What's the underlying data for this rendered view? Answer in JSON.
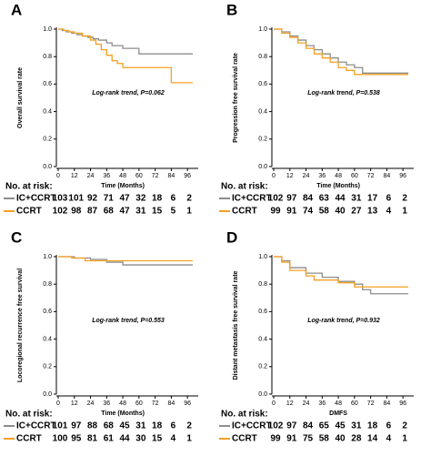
{
  "chart_data": [
    {
      "type": "step",
      "panel": "A",
      "ylabel": "Overall survival rate",
      "xlabel": "Time (Months)",
      "annotation": "Log-rank trend, P=0.062",
      "xlim": [
        0,
        104
      ],
      "ylim": [
        0,
        1
      ],
      "xticks": [
        0,
        12,
        24,
        36,
        48,
        60,
        72,
        84,
        96
      ],
      "yticks": [
        {
          "value": 0,
          "label": "0.0"
        },
        0.2,
        0.4,
        0.6,
        0.8,
        {
          "value": 1,
          "label": "1.0"
        }
      ],
      "series": [
        {
          "name": "IC+CCRT",
          "color": "#8c8c8c",
          "x": [
            0,
            3,
            6,
            10,
            14,
            18,
            22,
            26,
            30,
            36,
            40,
            48,
            60,
            100
          ],
          "values": [
            1,
            0.99,
            0.98,
            0.97,
            0.96,
            0.95,
            0.94,
            0.93,
            0.92,
            0.9,
            0.88,
            0.86,
            0.82,
            0.82
          ]
        },
        {
          "name": "CCRT",
          "color": "#f5a020",
          "x": [
            0,
            4,
            8,
            12,
            18,
            24,
            28,
            32,
            36,
            40,
            44,
            48,
            84,
            100
          ],
          "values": [
            1,
            0.99,
            0.98,
            0.97,
            0.95,
            0.92,
            0.89,
            0.85,
            0.81,
            0.77,
            0.75,
            0.72,
            0.61,
            0.61
          ]
        }
      ],
      "risk_table": {
        "title": "No. at risk:",
        "rows": [
          [
            103,
            101,
            92,
            71,
            47,
            32,
            18,
            6,
            2
          ],
          [
            102,
            98,
            87,
            68,
            47,
            31,
            15,
            5,
            1
          ]
        ]
      }
    },
    {
      "type": "step",
      "panel": "B",
      "ylabel": "Progression free survival rate",
      "xlabel": "Time (Months)",
      "annotation": "Log-rank trend, P=0.538",
      "xlim": [
        0,
        104
      ],
      "ylim": [
        0,
        1
      ],
      "xticks": [
        0,
        12,
        24,
        36,
        48,
        60,
        72,
        84,
        96
      ],
      "yticks": [
        {
          "value": 0,
          "label": "0.0"
        },
        0.2,
        0.4,
        0.6,
        0.8,
        {
          "value": 1,
          "label": "1.0"
        }
      ],
      "series": [
        {
          "name": "IC+CCRT",
          "color": "#8c8c8c",
          "x": [
            0,
            6,
            12,
            18,
            24,
            30,
            36,
            42,
            48,
            54,
            60,
            66,
            100
          ],
          "values": [
            1,
            0.98,
            0.95,
            0.92,
            0.88,
            0.85,
            0.82,
            0.79,
            0.76,
            0.74,
            0.72,
            0.68,
            0.68
          ]
        },
        {
          "name": "CCRT",
          "color": "#f5a020",
          "x": [
            0,
            6,
            12,
            18,
            24,
            30,
            36,
            42,
            48,
            54,
            60,
            100
          ],
          "values": [
            1,
            0.97,
            0.94,
            0.9,
            0.86,
            0.82,
            0.79,
            0.76,
            0.72,
            0.7,
            0.67,
            0.67
          ]
        }
      ],
      "risk_table": {
        "title": "No. at risk:",
        "rows": [
          [
            102,
            97,
            84,
            63,
            44,
            31,
            17,
            6,
            2
          ],
          [
            99,
            91,
            74,
            58,
            40,
            27,
            13,
            4,
            1
          ]
        ]
      }
    },
    {
      "type": "step",
      "panel": "C",
      "ylabel": "Locoregional recurrence free survival",
      "xlabel": "Time (Months)",
      "annotation": "Log-rank trend, P=0.553",
      "xlim": [
        0,
        104
      ],
      "ylim": [
        0,
        1
      ],
      "xticks": [
        0,
        12,
        24,
        36,
        48,
        60,
        72,
        84,
        96
      ],
      "yticks": [
        {
          "value": 0,
          "label": "0.0"
        },
        0.2,
        0.4,
        0.6,
        0.8,
        {
          "value": 1,
          "label": "1.0"
        }
      ],
      "series": [
        {
          "name": "IC+CCRT",
          "color": "#8c8c8c",
          "x": [
            0,
            12,
            24,
            36,
            48,
            100
          ],
          "values": [
            1,
            0.99,
            0.98,
            0.96,
            0.94,
            0.94
          ]
        },
        {
          "name": "CCRT",
          "color": "#f5a020",
          "x": [
            0,
            10,
            20,
            100
          ],
          "values": [
            1,
            0.99,
            0.97,
            0.97
          ]
        }
      ],
      "risk_table": {
        "title": "No. at risk:",
        "rows": [
          [
            101,
            97,
            88,
            68,
            45,
            31,
            18,
            6,
            2
          ],
          [
            100,
            95,
            81,
            61,
            44,
            30,
            15,
            4,
            1
          ]
        ]
      }
    },
    {
      "type": "step",
      "panel": "D",
      "ylabel": "Distant metastasis free survival rate",
      "xlabel": "DMFS",
      "annotation": "Log-rank trend, P=0.932",
      "xlim": [
        0,
        104
      ],
      "ylim": [
        0,
        1
      ],
      "xticks": [
        0,
        12,
        24,
        36,
        48,
        60,
        72,
        84,
        96
      ],
      "yticks": [
        {
          "value": 0,
          "label": "0.0"
        },
        0.2,
        0.4,
        0.6,
        0.8,
        {
          "value": 1,
          "label": "1.0"
        }
      ],
      "series": [
        {
          "name": "IC+CCRT",
          "color": "#8c8c8c",
          "x": [
            0,
            6,
            12,
            24,
            36,
            48,
            60,
            66,
            72,
            100
          ],
          "values": [
            1,
            0.97,
            0.92,
            0.88,
            0.85,
            0.82,
            0.8,
            0.76,
            0.73,
            0.73
          ]
        },
        {
          "name": "CCRT",
          "color": "#f5a020",
          "x": [
            0,
            6,
            12,
            24,
            30,
            48,
            60,
            100
          ],
          "values": [
            1,
            0.96,
            0.9,
            0.86,
            0.83,
            0.81,
            0.78,
            0.78
          ]
        }
      ],
      "risk_table": {
        "title": "No. at risk:",
        "rows": [
          [
            102,
            97,
            84,
            65,
            45,
            31,
            18,
            6,
            2
          ],
          [
            99,
            91,
            75,
            58,
            40,
            28,
            14,
            4,
            1
          ]
        ]
      }
    }
  ]
}
